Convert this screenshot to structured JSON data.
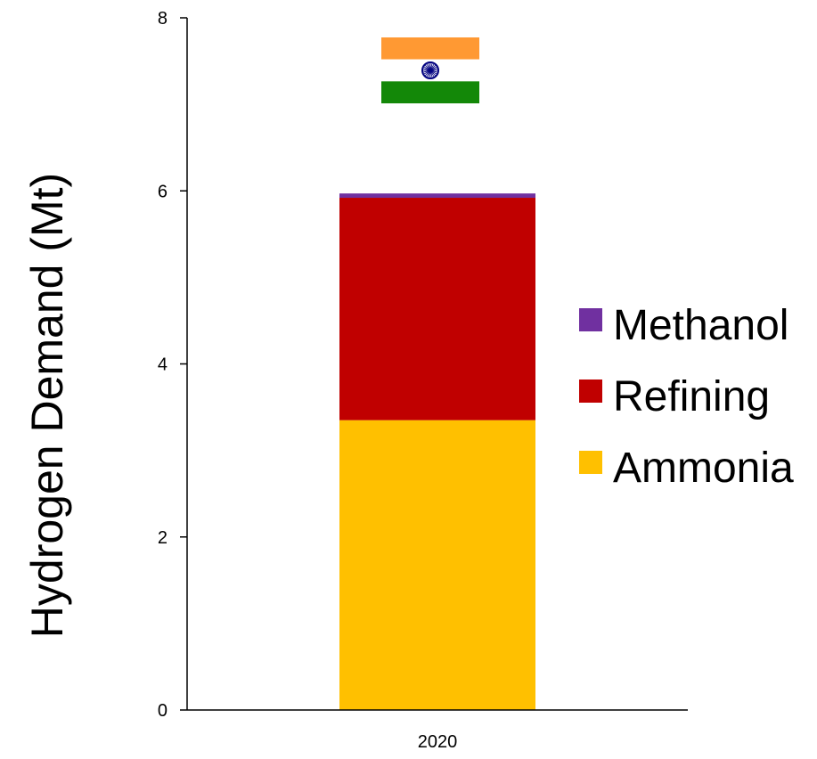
{
  "chart_data": {
    "type": "bar",
    "stacked": true,
    "categories": [
      "2020"
    ],
    "series": [
      {
        "name": "Ammonia",
        "values": [
          3.35
        ],
        "color": "#FFC000"
      },
      {
        "name": "Refining",
        "values": [
          2.57
        ],
        "color": "#C00000"
      },
      {
        "name": "Methanol",
        "values": [
          0.05
        ],
        "color": "#7030A0"
      }
    ],
    "legend_order": [
      "Methanol",
      "Refining",
      "Ammonia"
    ],
    "title": "",
    "xlabel": "",
    "ylabel": "Hydrogen Demand (Mt)",
    "ylim": [
      0,
      8
    ],
    "yticks": [
      "0",
      "2",
      "4",
      "6",
      "8"
    ],
    "grid": false,
    "legend_position": "right",
    "decoration": {
      "name": "india-flag-icon",
      "colors": [
        "#FF9933",
        "#FFFFFF",
        "#138808",
        "#000080"
      ]
    }
  }
}
